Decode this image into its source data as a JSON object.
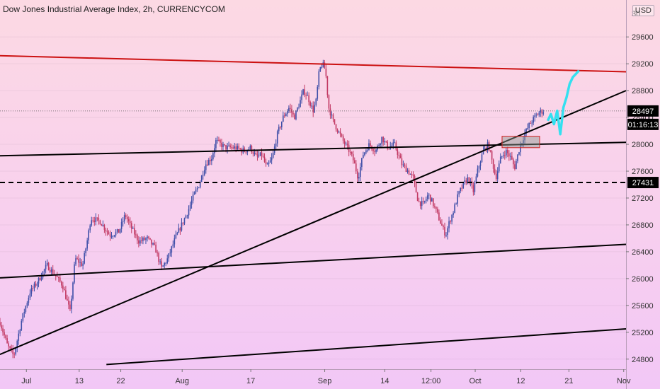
{
  "header": {
    "title": "Dow Jones Industrial Average Index, 2h, CURRENCYCOM",
    "currency": "USD"
  },
  "chart_data": {
    "type": "candlestick",
    "instrument": "Dow Jones Industrial Average Index",
    "interval": "2h",
    "source": "CURRENCYCOM",
    "y_axis": {
      "min": 24650,
      "max": 30150,
      "ticks": [
        24800,
        25200,
        25600,
        26000,
        26400,
        26800,
        27200,
        27600,
        28000,
        28400,
        28800,
        29200,
        29600
      ],
      "top_partial_label": "30"
    },
    "x_axis": {
      "labels": [
        {
          "text": "Jul",
          "pos": 0.04
        },
        {
          "text": "13",
          "pos": 0.12
        },
        {
          "text": "22",
          "pos": 0.183
        },
        {
          "text": "Aug",
          "pos": 0.276
        },
        {
          "text": "17",
          "pos": 0.38
        },
        {
          "text": "Sep",
          "pos": 0.492
        },
        {
          "text": "14",
          "pos": 0.583
        },
        {
          "text": "12:00",
          "pos": 0.653
        },
        {
          "text": "Oct",
          "pos": 0.72
        },
        {
          "text": "12",
          "pos": 0.789
        },
        {
          "text": "21",
          "pos": 0.862
        },
        {
          "text": "Nov",
          "pos": 0.945
        }
      ]
    },
    "price_path": [
      [
        0.0,
        25350
      ],
      [
        0.012,
        25000
      ],
      [
        0.022,
        24850
      ],
      [
        0.035,
        25400
      ],
      [
        0.048,
        25800
      ],
      [
        0.06,
        25950
      ],
      [
        0.075,
        26200
      ],
      [
        0.088,
        26050
      ],
      [
        0.1,
        25900
      ],
      [
        0.112,
        25500
      ],
      [
        0.12,
        26300
      ],
      [
        0.132,
        26200
      ],
      [
        0.14,
        26600
      ],
      [
        0.145,
        26900
      ],
      [
        0.16,
        26850
      ],
      [
        0.175,
        26650
      ],
      [
        0.19,
        26700
      ],
      [
        0.2,
        26950
      ],
      [
        0.21,
        26750
      ],
      [
        0.222,
        26550
      ],
      [
        0.235,
        26600
      ],
      [
        0.248,
        26450
      ],
      [
        0.258,
        26150
      ],
      [
        0.268,
        26300
      ],
      [
        0.28,
        26600
      ],
      [
        0.29,
        26800
      ],
      [
        0.3,
        27000
      ],
      [
        0.31,
        27250
      ],
      [
        0.318,
        27400
      ],
      [
        0.328,
        27700
      ],
      [
        0.338,
        27800
      ],
      [
        0.345,
        28050
      ],
      [
        0.36,
        27950
      ],
      [
        0.375,
        27950
      ],
      [
        0.39,
        27900
      ],
      [
        0.4,
        27950
      ],
      [
        0.41,
        27800
      ],
      [
        0.418,
        27850
      ],
      [
        0.426,
        27650
      ],
      [
        0.435,
        27800
      ],
      [
        0.443,
        28150
      ],
      [
        0.452,
        28400
      ],
      [
        0.462,
        28550
      ],
      [
        0.47,
        28400
      ],
      [
        0.478,
        28600
      ],
      [
        0.485,
        28800
      ],
      [
        0.492,
        28700
      ],
      [
        0.5,
        28500
      ],
      [
        0.505,
        28650
      ],
      [
        0.51,
        29100
      ],
      [
        0.515,
        29200
      ],
      [
        0.52,
        29100
      ],
      [
        0.525,
        28550
      ],
      [
        0.532,
        28350
      ],
      [
        0.54,
        28200
      ],
      [
        0.548,
        28050
      ],
      [
        0.558,
        27900
      ],
      [
        0.565,
        27750
      ],
      [
        0.572,
        27500
      ],
      [
        0.58,
        27850
      ],
      [
        0.59,
        28000
      ],
      [
        0.6,
        27900
      ],
      [
        0.61,
        28100
      ],
      [
        0.62,
        27950
      ],
      [
        0.63,
        28000
      ],
      [
        0.642,
        27700
      ],
      [
        0.652,
        27600
      ],
      [
        0.66,
        27500
      ],
      [
        0.668,
        27150
      ],
      [
        0.676,
        27100
      ],
      [
        0.684,
        27250
      ],
      [
        0.69,
        27150
      ],
      [
        0.697,
        27000
      ],
      [
        0.705,
        26800
      ],
      [
        0.712,
        26650
      ],
      [
        0.718,
        26850
      ],
      [
        0.724,
        27000
      ],
      [
        0.732,
        27250
      ],
      [
        0.74,
        27400
      ],
      [
        0.748,
        27500
      ],
      [
        0.756,
        27300
      ],
      [
        0.764,
        27650
      ],
      [
        0.772,
        27900
      ],
      [
        0.78,
        28000
      ],
      [
        0.786,
        27750
      ],
      [
        0.792,
        27500
      ],
      [
        0.8,
        27800
      ],
      [
        0.808,
        27900
      ],
      [
        0.816,
        27800
      ],
      [
        0.822,
        27650
      ],
      [
        0.83,
        27950
      ],
      [
        0.838,
        28150
      ],
      [
        0.846,
        28300
      ],
      [
        0.854,
        28400
      ],
      [
        0.862,
        28480
      ],
      [
        0.868,
        28497
      ]
    ],
    "projection_path": [
      [
        0.875,
        28350
      ],
      [
        0.88,
        28450
      ],
      [
        0.885,
        28300
      ],
      [
        0.89,
        28500
      ],
      [
        0.895,
        28150
      ],
      [
        0.9,
        28550
      ],
      [
        0.905,
        28700
      ],
      [
        0.91,
        28900
      ],
      [
        0.915,
        29000
      ],
      [
        0.92,
        29050
      ],
      [
        0.925,
        29100
      ]
    ],
    "trendlines": [
      {
        "name": "resistance",
        "color": "#cc1111",
        "dashed": false,
        "points": [
          [
            0.0,
            29320
          ],
          [
            1.0,
            29080
          ]
        ]
      },
      {
        "name": "horizontal-upper",
        "color": "#000000",
        "dashed": false,
        "points": [
          [
            0.0,
            27830
          ],
          [
            1.0,
            28030
          ]
        ]
      },
      {
        "name": "rising-support",
        "color": "#000000",
        "dashed": false,
        "points": [
          [
            0.0,
            24870
          ],
          [
            1.0,
            28800
          ]
        ]
      },
      {
        "name": "dashed-level",
        "color": "#000000",
        "dashed": true,
        "points": [
          [
            0.0,
            27431
          ],
          [
            1.0,
            27431
          ]
        ]
      },
      {
        "name": "channel-lower",
        "color": "#000000",
        "dashed": false,
        "points": [
          [
            0.0,
            26010
          ],
          [
            1.0,
            26510
          ]
        ]
      },
      {
        "name": "channel-bottom",
        "color": "#000000",
        "dashed": false,
        "points": [
          [
            0.17,
            24720
          ],
          [
            1.0,
            25250
          ]
        ]
      }
    ],
    "zone": {
      "x_start": 0.802,
      "x_end": 0.862,
      "y_low": 27950,
      "y_high": 28120
    },
    "current_price": {
      "value": 28497,
      "label": "28497",
      "countdown": "01:16:13"
    },
    "level_label": {
      "value": 27431,
      "label": "27431"
    }
  }
}
